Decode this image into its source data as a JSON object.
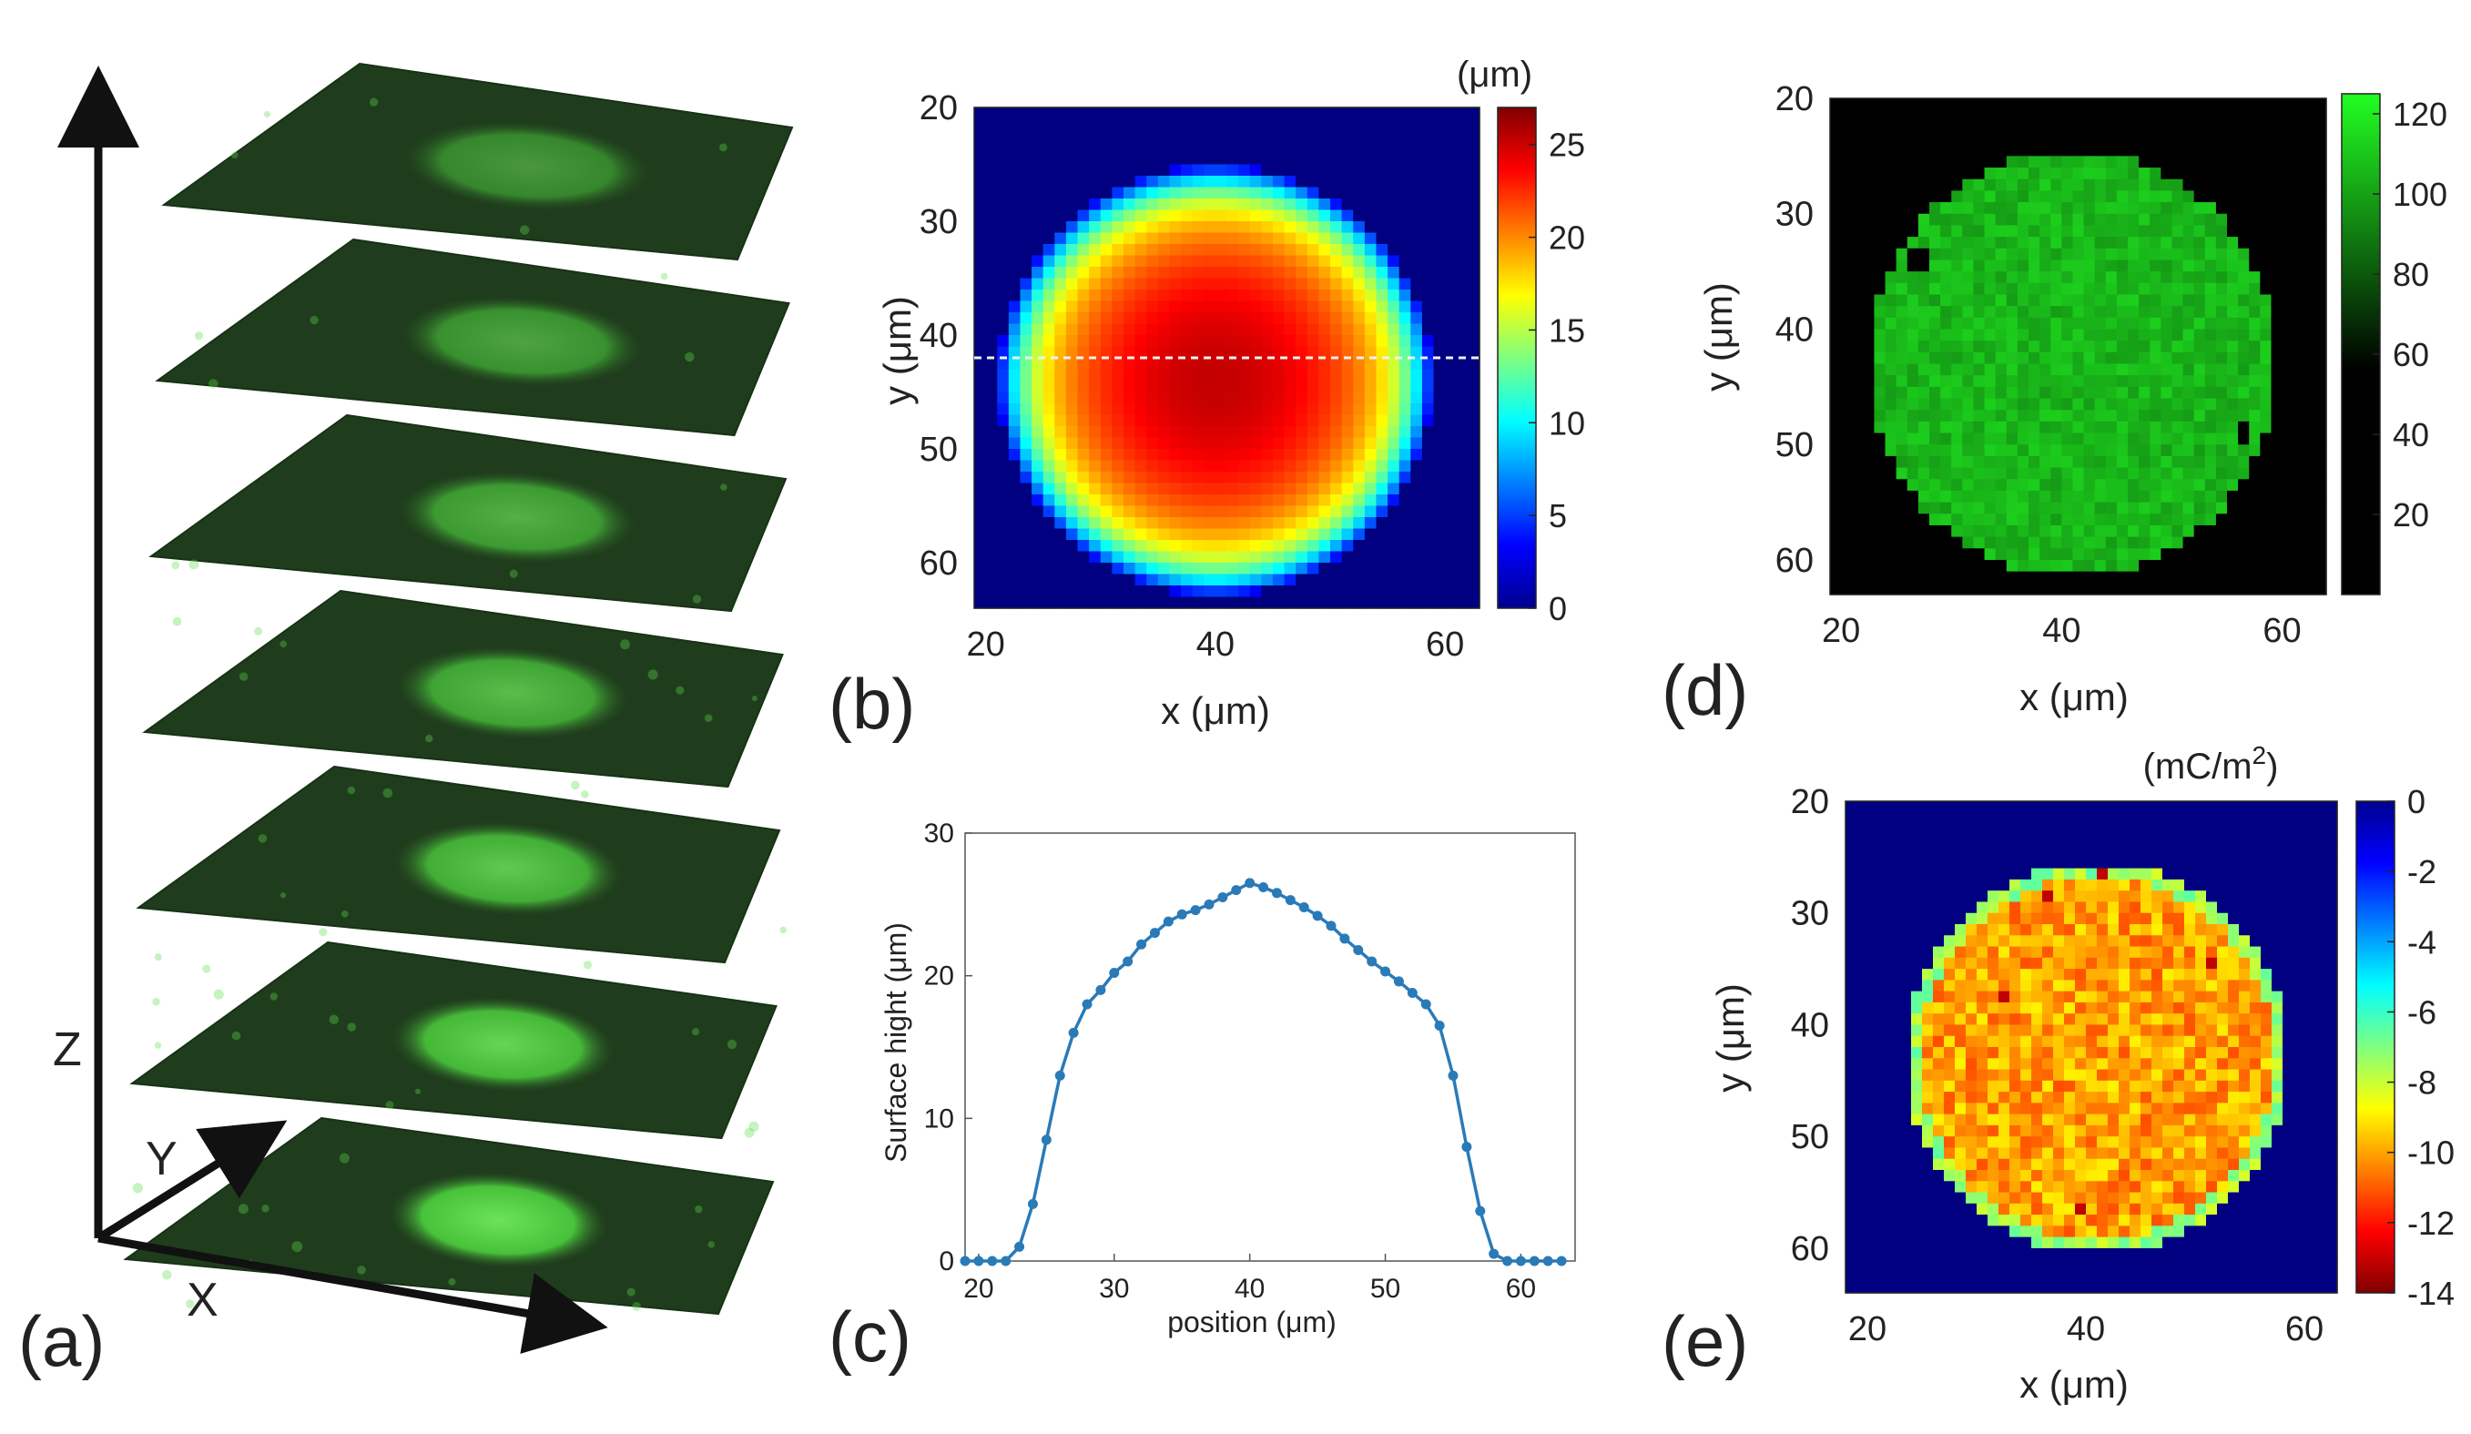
{
  "figure": {
    "panel_labels": [
      "(a)",
      "(b)",
      "(c)",
      "(d)",
      "(e)"
    ],
    "axis_letters": {
      "x": "X",
      "y": "Y",
      "z": "Z"
    }
  },
  "chart_data": [
    {
      "panel": "(a)",
      "type": "other",
      "description": "stack of 7 confocal fluorescence slices",
      "slice_count": 7,
      "colors": {
        "slice_dark": "#1f3d1c",
        "slice_mid": "#2e5a2a",
        "spot": "#5cdc4a"
      }
    },
    {
      "panel": "(b)",
      "type": "heatmap",
      "xlabel": "x (μm)",
      "ylabel": "y (μm)",
      "xlim": [
        19,
        63
      ],
      "ylim": [
        20,
        64
      ],
      "xticks": [
        20,
        40,
        60
      ],
      "yticks": [
        20,
        30,
        40,
        50,
        60
      ],
      "colorbar": {
        "unit": "(μm)",
        "min": 0,
        "max": 27,
        "ticks": [
          0,
          5,
          10,
          15,
          20,
          25
        ],
        "colormap": "jet"
      },
      "feature": {
        "center_x": 40,
        "center_y": 44,
        "radius": 19,
        "peak_value": 26.5,
        "background": 0
      },
      "dashed_line_y": 42
    },
    {
      "panel": "(c)",
      "type": "line",
      "xlabel": "position (μm)",
      "ylabel": "Surface hight (μm)",
      "xlim": [
        19,
        64
      ],
      "ylim": [
        0,
        30
      ],
      "xticks": [
        20,
        30,
        40,
        50,
        60
      ],
      "yticks": [
        0,
        10,
        20,
        30
      ],
      "series": [
        {
          "name": "height",
          "color": "#2a7ab8",
          "x": [
            19,
            20,
            21,
            22,
            23,
            24,
            25,
            26,
            27,
            28,
            29,
            30,
            31,
            32,
            33,
            34,
            35,
            36,
            37,
            38,
            39,
            40,
            41,
            42,
            43,
            44,
            45,
            46,
            47,
            48,
            49,
            50,
            51,
            52,
            53,
            54,
            55,
            56,
            57,
            58,
            59,
            60,
            61,
            62,
            63
          ],
          "y": [
            0,
            0,
            0,
            0,
            1,
            4,
            8.5,
            13,
            16,
            18,
            19,
            20.2,
            21,
            22.2,
            23,
            23.8,
            24.3,
            24.6,
            25,
            25.5,
            26,
            26.5,
            26.2,
            25.8,
            25.3,
            24.8,
            24.2,
            23.5,
            22.6,
            21.8,
            21,
            20.3,
            19.6,
            18.8,
            18,
            16.5,
            13,
            8,
            3.5,
            0.5,
            0,
            0,
            0,
            0,
            0
          ]
        }
      ]
    },
    {
      "panel": "(d)",
      "type": "heatmap",
      "xlabel": "x (μm)",
      "ylabel": "y (μm)",
      "xlim": [
        19,
        64
      ],
      "ylim": [
        20,
        63
      ],
      "xticks": [
        20,
        40,
        60
      ],
      "yticks": [
        20,
        30,
        40,
        50,
        60
      ],
      "colorbar": {
        "unit": "",
        "min": 0,
        "max": 125,
        "ticks": [
          20,
          40,
          60,
          80,
          100,
          120
        ],
        "colormap": "black-green"
      },
      "feature": {
        "center_x": 41,
        "center_y": 43,
        "radius": 18.5,
        "mean_value": 105,
        "background": 0
      }
    },
    {
      "panel": "(e)",
      "type": "heatmap",
      "xlabel": "x (μm)",
      "ylabel": "y (μm)",
      "xlim": [
        18,
        63
      ],
      "ylim": [
        20,
        64
      ],
      "xticks": [
        20,
        40,
        60
      ],
      "yticks": [
        20,
        30,
        40,
        50,
        60
      ],
      "colorbar": {
        "unit": "(mC/m",
        "unit_sup": "2",
        "unit_end": ")",
        "min": -14,
        "max": 0,
        "ticks": [
          0,
          -2,
          -4,
          -6,
          -8,
          -10,
          -12,
          -14
        ],
        "colormap": "jet"
      },
      "feature": {
        "center_x": 41,
        "center_y": 43,
        "radius": 17.5,
        "mean_value": -9.5,
        "background": 0
      }
    }
  ]
}
